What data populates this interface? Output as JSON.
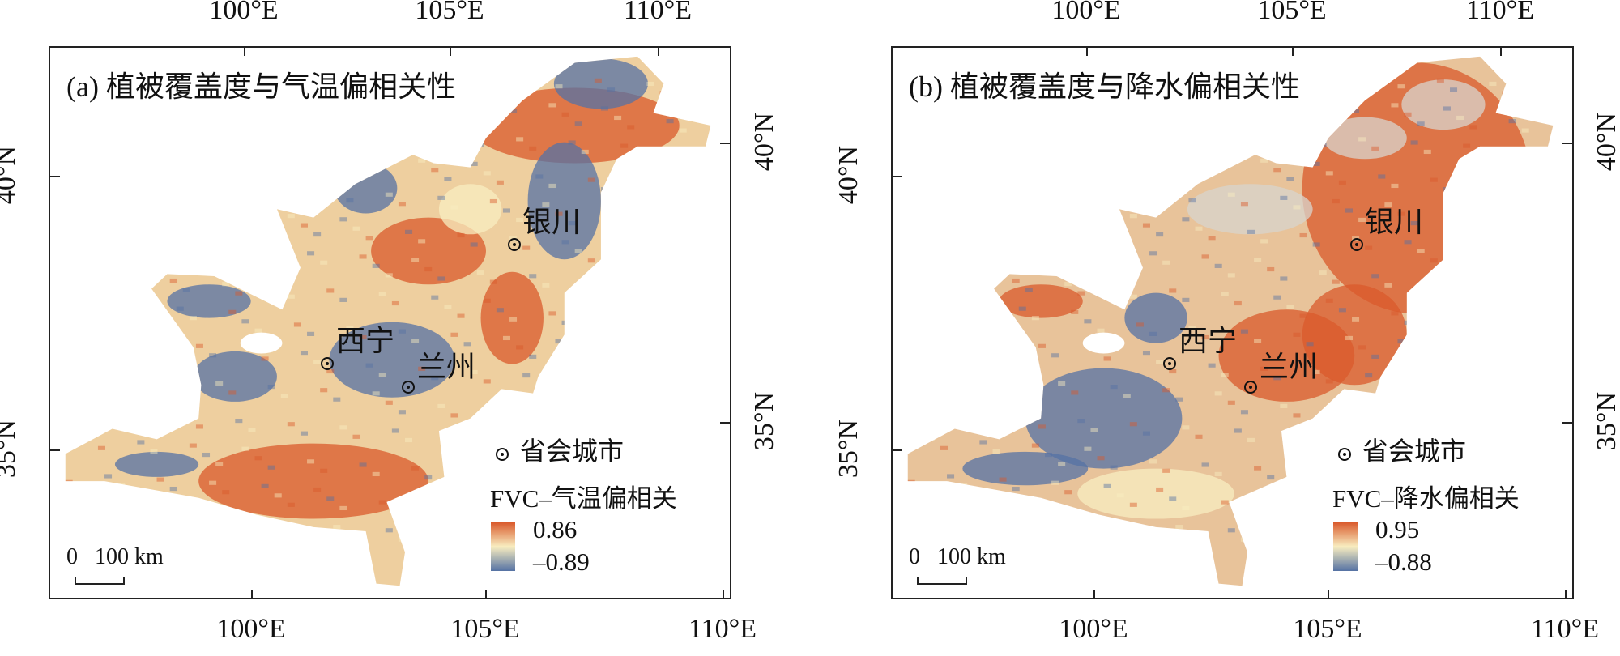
{
  "panels": [
    {
      "id": "a",
      "title": "(a) 植被覆盖度与气温偏相关性",
      "top_ticks": [
        "100°E",
        "105°E",
        "110°E"
      ],
      "bottom_ticks": [
        "100°E",
        "105°E",
        "110°E"
      ],
      "left_ticks": [
        "40°N",
        "35°N"
      ],
      "right_ticks": [
        "40°N",
        "35°N"
      ],
      "cities": [
        "银川",
        "西宁",
        "兰州"
      ],
      "legend": {
        "city_label": "省会城市",
        "title": "FVC–气温偏相关",
        "max": "0.86",
        "min": "–0.89"
      },
      "scale": {
        "zero": "0",
        "label": "100 km"
      }
    },
    {
      "id": "b",
      "title": "(b) 植被覆盖度与降水偏相关性",
      "top_ticks": [
        "100°E",
        "105°E",
        "110°E"
      ],
      "bottom_ticks": [
        "100°E",
        "105°E",
        "110°E"
      ],
      "left_ticks": [
        "40°N",
        "35°N"
      ],
      "right_ticks": [
        "40°N",
        "35°N"
      ],
      "cities": [
        "银川",
        "西宁",
        "兰州"
      ],
      "legend": {
        "city_label": "省会城市",
        "title": "FVC–降水偏相关",
        "max": "0.95",
        "min": "–0.88"
      },
      "scale": {
        "zero": "0",
        "label": "100 km"
      }
    }
  ],
  "colors": {
    "high": "#d9592b",
    "mid": "#f8edc0",
    "low": "#5572a4",
    "nodata": "#d8d4cc"
  }
}
